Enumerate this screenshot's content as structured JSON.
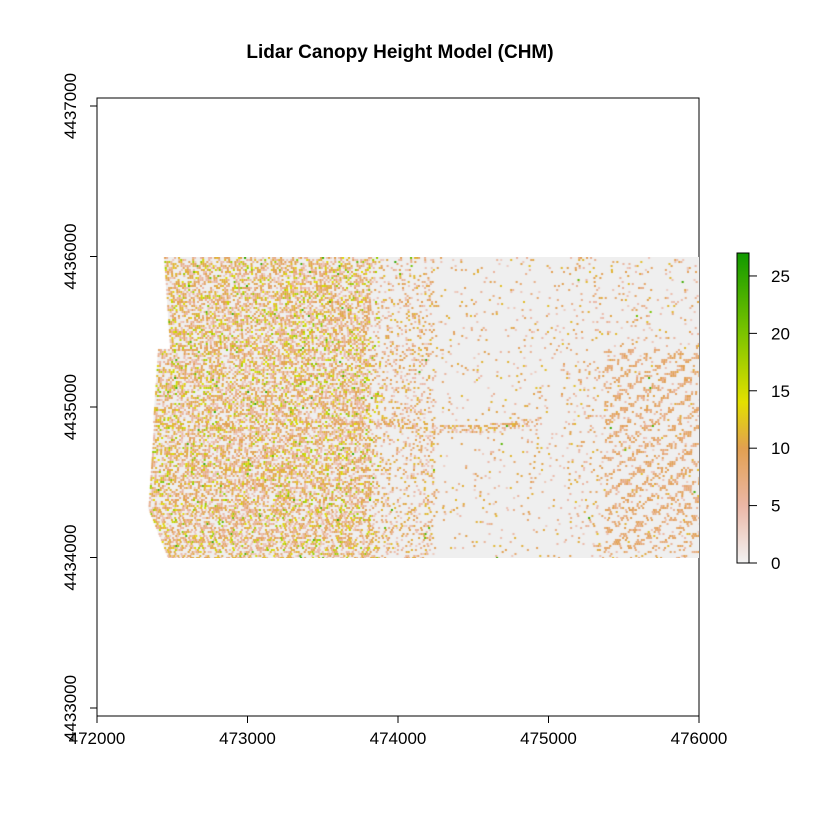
{
  "chart_data": {
    "type": "heatmap",
    "title": "Lidar Canopy Height Model (CHM)",
    "xlabel": "",
    "ylabel": "",
    "xlim": [
      472000,
      476000
    ],
    "ylim": [
      4433000,
      4437000
    ],
    "x_ticks": [
      472000,
      473000,
      474000,
      475000,
      476000
    ],
    "y_ticks": [
      4433000,
      4434000,
      4435000,
      4436000,
      4437000
    ],
    "raster_extent": {
      "xmin": 472470,
      "xmax": 476000,
      "ymin": 4434000,
      "ymax": 4436000
    },
    "zlim": [
      0,
      27
    ],
    "legend": {
      "position": "right",
      "ticks": [
        0,
        5,
        10,
        15,
        20,
        25
      ]
    },
    "colormap": [
      {
        "value": 0,
        "color": "#F2F2F2"
      },
      {
        "value": 5,
        "color": "#EBB7A6"
      },
      {
        "value": 10,
        "color": "#E2A050"
      },
      {
        "value": 14,
        "color": "#E3E000"
      },
      {
        "value": 20,
        "color": "#7CC400"
      },
      {
        "value": 27,
        "color": "#119900"
      }
    ],
    "grid": false
  }
}
